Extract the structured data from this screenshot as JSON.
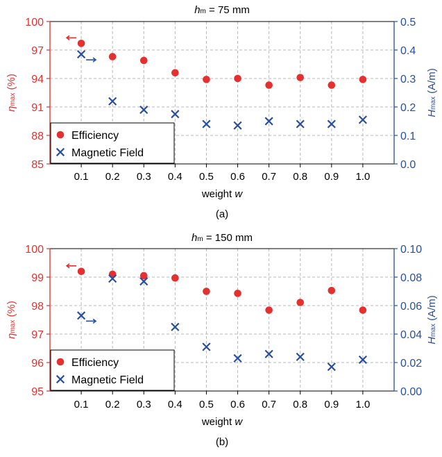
{
  "colors": {
    "efficiency": "#e53030",
    "field": "#2a4f9e",
    "grid": "#b8b8b8",
    "axis": "#000000"
  },
  "chart_data": [
    {
      "type": "scatter",
      "title": {
        "var": "h",
        "sub": "m",
        "rest": " = 75 mm"
      },
      "caption": "(a)",
      "xlabel": {
        "text": "weight ",
        "var": "w"
      },
      "categories": [
        "0.1",
        "0.2",
        "0.3",
        "0.4",
        "0.5",
        "0.6",
        "0.7",
        "0.8",
        "0.9",
        "1.0"
      ],
      "x": [
        0.1,
        0.2,
        0.3,
        0.4,
        0.5,
        0.6,
        0.7,
        0.8,
        0.9,
        1.0
      ],
      "xlim": [
        0,
        1.1
      ],
      "ylabel_left": {
        "var": "η",
        "sub": "max",
        "rest": " (%)"
      },
      "ylabel_right": {
        "var": "H",
        "sub": "max",
        "rest": " (A/m)"
      },
      "ylim_left": [
        85,
        100
      ],
      "yticks_left": [
        "85",
        "88",
        "91",
        "94",
        "97",
        "100"
      ],
      "ylim_right": [
        0,
        0.5
      ],
      "yticks_right": [
        "0.0",
        "0.1",
        "0.2",
        "0.3",
        "0.4",
        "0.5"
      ],
      "grid": true,
      "legend_placement": "bottom-left",
      "series": [
        {
          "name": "Efficiency",
          "axis": "left",
          "marker": "circle",
          "values": [
            97.7,
            96.3,
            95.9,
            94.6,
            93.9,
            94.0,
            93.3,
            94.1,
            93.3,
            93.9
          ]
        },
        {
          "name": "Magnetic Field",
          "axis": "right",
          "marker": "x",
          "values": [
            0.385,
            0.22,
            0.19,
            0.175,
            0.14,
            0.135,
            0.15,
            0.14,
            0.14,
            0.155
          ]
        }
      ]
    },
    {
      "type": "scatter",
      "title": {
        "var": "h",
        "sub": "m",
        "rest": " = 150 mm"
      },
      "caption": "(b)",
      "xlabel": {
        "text": "weight ",
        "var": "w"
      },
      "categories": [
        "0.1",
        "0.2",
        "0.3",
        "0.4",
        "0.5",
        "0.6",
        "0.7",
        "0.8",
        "0.9",
        "1.0"
      ],
      "x": [
        0.1,
        0.2,
        0.3,
        0.4,
        0.5,
        0.6,
        0.7,
        0.8,
        0.9,
        1.0
      ],
      "xlim": [
        0,
        1.1
      ],
      "ylabel_left": {
        "var": "η",
        "sub": "max",
        "rest": " (%)"
      },
      "ylabel_right": {
        "var": "H",
        "sub": "max",
        "rest": " (A/m)"
      },
      "ylim_left": [
        95,
        100
      ],
      "yticks_left": [
        "95",
        "96",
        "97",
        "98",
        "99",
        "100"
      ],
      "ylim_right": [
        0,
        0.1
      ],
      "yticks_right": [
        "0.00",
        "0.02",
        "0.04",
        "0.06",
        "0.08",
        "0.10"
      ],
      "grid": true,
      "legend_placement": "bottom-left",
      "series": [
        {
          "name": "Efficiency",
          "axis": "left",
          "marker": "circle",
          "values": [
            99.2,
            99.1,
            99.05,
            98.97,
            98.5,
            98.43,
            97.84,
            98.11,
            98.53,
            97.84
          ]
        },
        {
          "name": "Magnetic Field",
          "axis": "right",
          "marker": "x",
          "values": [
            0.053,
            0.079,
            0.077,
            0.045,
            0.031,
            0.023,
            0.026,
            0.024,
            0.017,
            0.022
          ]
        }
      ]
    }
  ]
}
